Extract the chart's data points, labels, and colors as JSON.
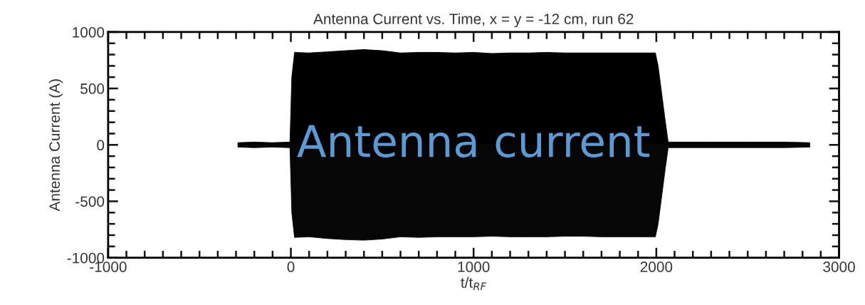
{
  "chart_data": {
    "type": "area",
    "title": "Antenna Current vs. Time, x = y = -12 cm, run 62",
    "xlabel": "t/t$_{RF}$",
    "ylabel": "Antenna Current (A)",
    "x": [
      -290,
      -200,
      -100,
      -5,
      5,
      20,
      100,
      200,
      300,
      400,
      500,
      600,
      700,
      800,
      900,
      1000,
      1100,
      1200,
      1300,
      1400,
      1500,
      1600,
      1700,
      1800,
      1900,
      1995,
      2010,
      2030,
      2050,
      2065,
      2100,
      2300,
      2500,
      2700,
      2840
    ],
    "series": [
      {
        "color": "#000000",
        "values": [
          20,
          25,
          20,
          25,
          600,
          820,
          815,
          825,
          835,
          845,
          835,
          815,
          820,
          820,
          815,
          820,
          810,
          815,
          815,
          820,
          815,
          815,
          815,
          815,
          815,
          815,
          700,
          450,
          200,
          25,
          25,
          25,
          25,
          25,
          20
        ]
      },
      {
        "color": "#060606",
        "values": [
          -20,
          -25,
          -20,
          -25,
          -600,
          -820,
          -815,
          -830,
          -840,
          -845,
          -835,
          -815,
          -820,
          -815,
          -815,
          -815,
          -810,
          -815,
          -815,
          -815,
          -810,
          -810,
          -815,
          -815,
          -815,
          -815,
          -700,
          -450,
          -200,
          -25,
          -25,
          -25,
          -25,
          -25,
          -20
        ]
      }
    ],
    "xlim": [
      -1000,
      3000
    ],
    "xticks": [
      -1000,
      {
        "value": -900,
        "label": null
      },
      {
        "value": -800,
        "label": null
      },
      {
        "value": -700,
        "label": null
      },
      {
        "value": -600,
        "label": null
      },
      {
        "value": -500,
        "label": null
      },
      {
        "value": -400,
        "label": null
      },
      {
        "value": -300,
        "label": null
      },
      {
        "value": -200,
        "label": null
      },
      {
        "value": -100,
        "label": null
      },
      0,
      {
        "value": 100,
        "label": null
      },
      {
        "value": 200,
        "label": null
      },
      {
        "value": 300,
        "label": null
      },
      {
        "value": 400,
        "label": null
      },
      {
        "value": 500,
        "label": null
      },
      {
        "value": 600,
        "label": null
      },
      {
        "value": 700,
        "label": null
      },
      {
        "value": 800,
        "label": null
      },
      {
        "value": 900,
        "label": null
      },
      1000,
      {
        "value": 1100,
        "label": null
      },
      {
        "value": 1200,
        "label": null
      },
      {
        "value": 1300,
        "label": null
      },
      {
        "value": 1400,
        "label": null
      },
      {
        "value": 1500,
        "label": null
      },
      {
        "value": 1600,
        "label": null
      },
      {
        "value": 1700,
        "label": null
      },
      {
        "value": 1800,
        "label": null
      },
      {
        "value": 1900,
        "label": null
      },
      2000,
      {
        "value": 2100,
        "label": null
      },
      {
        "value": 2200,
        "label": null
      },
      {
        "value": 2300,
        "label": null
      },
      {
        "value": 2400,
        "label": null
      },
      {
        "value": 2500,
        "label": null
      },
      {
        "value": 2600,
        "label": null
      },
      {
        "value": 2700,
        "label": null
      },
      {
        "value": 2800,
        "label": null
      },
      {
        "value": 2900,
        "label": null
      },
      3000
    ],
    "ylim": [
      -1000,
      1000
    ],
    "yticks": [
      -1000,
      {
        "value": -900,
        "label": null
      },
      {
        "value": -800,
        "label": null
      },
      {
        "value": -700,
        "label": null
      },
      {
        "value": -600,
        "label": null
      },
      -500,
      {
        "value": -400,
        "label": null
      },
      {
        "value": -300,
        "label": null
      },
      {
        "value": -200,
        "label": null
      },
      {
        "value": -100,
        "label": null
      },
      0,
      {
        "value": 100,
        "label": null
      },
      {
        "value": 200,
        "label": null
      },
      {
        "value": 300,
        "label": null
      },
      {
        "value": 400,
        "label": null
      },
      500,
      {
        "value": 600,
        "label": null
      },
      {
        "value": 700,
        "label": null
      },
      {
        "value": 800,
        "label": null
      },
      {
        "value": 900,
        "label": null
      },
      1000
    ],
    "annotations": [
      "Antenna current"
    ],
    "grid": false,
    "legend": false
  }
}
